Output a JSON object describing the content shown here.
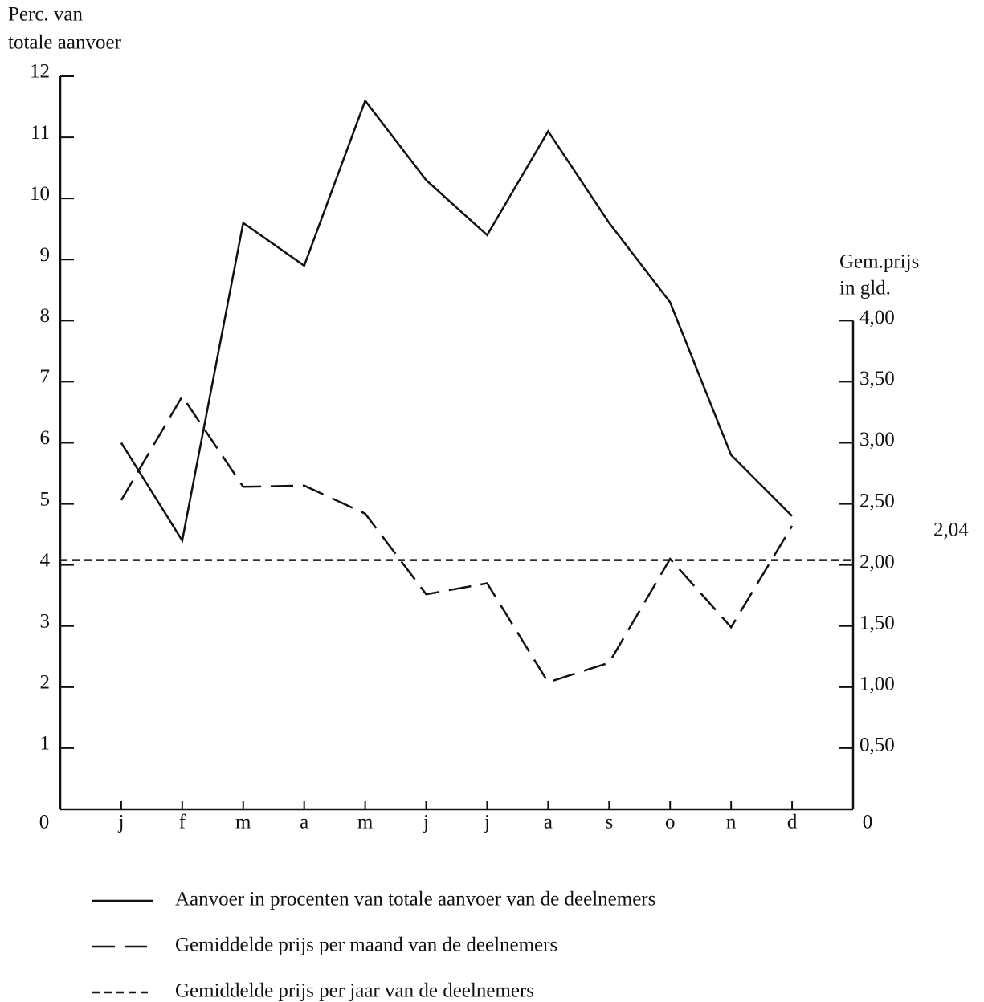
{
  "chart_data": {
    "type": "line",
    "y_label": [
      "Perc. van",
      "totale aanvoer"
    ],
    "y2_label": [
      "Gem.prijs",
      "in gld."
    ],
    "categories": [
      "j",
      "f",
      "m",
      "a",
      "m",
      "j",
      "j",
      "a",
      "s",
      "o",
      "n",
      "d"
    ],
    "series": [
      {
        "name": "Aanvoer in procenten van totale aanvoer van de deelnemers",
        "color": "#111111",
        "line_style": "solid",
        "values": [
          6.0,
          4.4,
          9.6,
          8.9,
          11.6,
          10.3,
          9.4,
          11.1,
          9.6,
          8.3,
          5.8,
          4.8
        ]
      },
      {
        "name": "Gemiddelde prijs per maand van de deelnemers",
        "color": "#111111",
        "line_style": "dashed",
        "axis": "y2",
        "values": [
          2.53,
          3.38,
          2.64,
          2.65,
          2.42,
          1.76,
          1.85,
          1.04,
          1.2,
          2.05,
          1.49,
          2.32
        ]
      }
    ],
    "reference_line": {
      "name": "Gemiddelde prijs per jaar van de deelnemers",
      "color": "#111111",
      "line_style": "dotted",
      "axis": "y2",
      "value": 2.04,
      "label": "2,04"
    },
    "ylim": [
      0,
      12
    ],
    "yticks": [
      0,
      1,
      2,
      3,
      4,
      5,
      6,
      7,
      8,
      9,
      10,
      11,
      12
    ],
    "y2lim": [
      0,
      6
    ],
    "y2ticks": [
      0,
      {
        "value": 0.5,
        "label": "0,50"
      },
      {
        "value": 1,
        "label": "1,00"
      },
      {
        "value": 1.5,
        "label": "1,50"
      },
      {
        "value": 2,
        "label": "2,00"
      },
      {
        "value": 2.5,
        "label": "2,50"
      },
      {
        "value": 3,
        "label": "3,00"
      },
      {
        "value": 3.5,
        "label": "3,50"
      },
      {
        "value": 4,
        "label": "4,00"
      }
    ],
    "grid": false
  }
}
